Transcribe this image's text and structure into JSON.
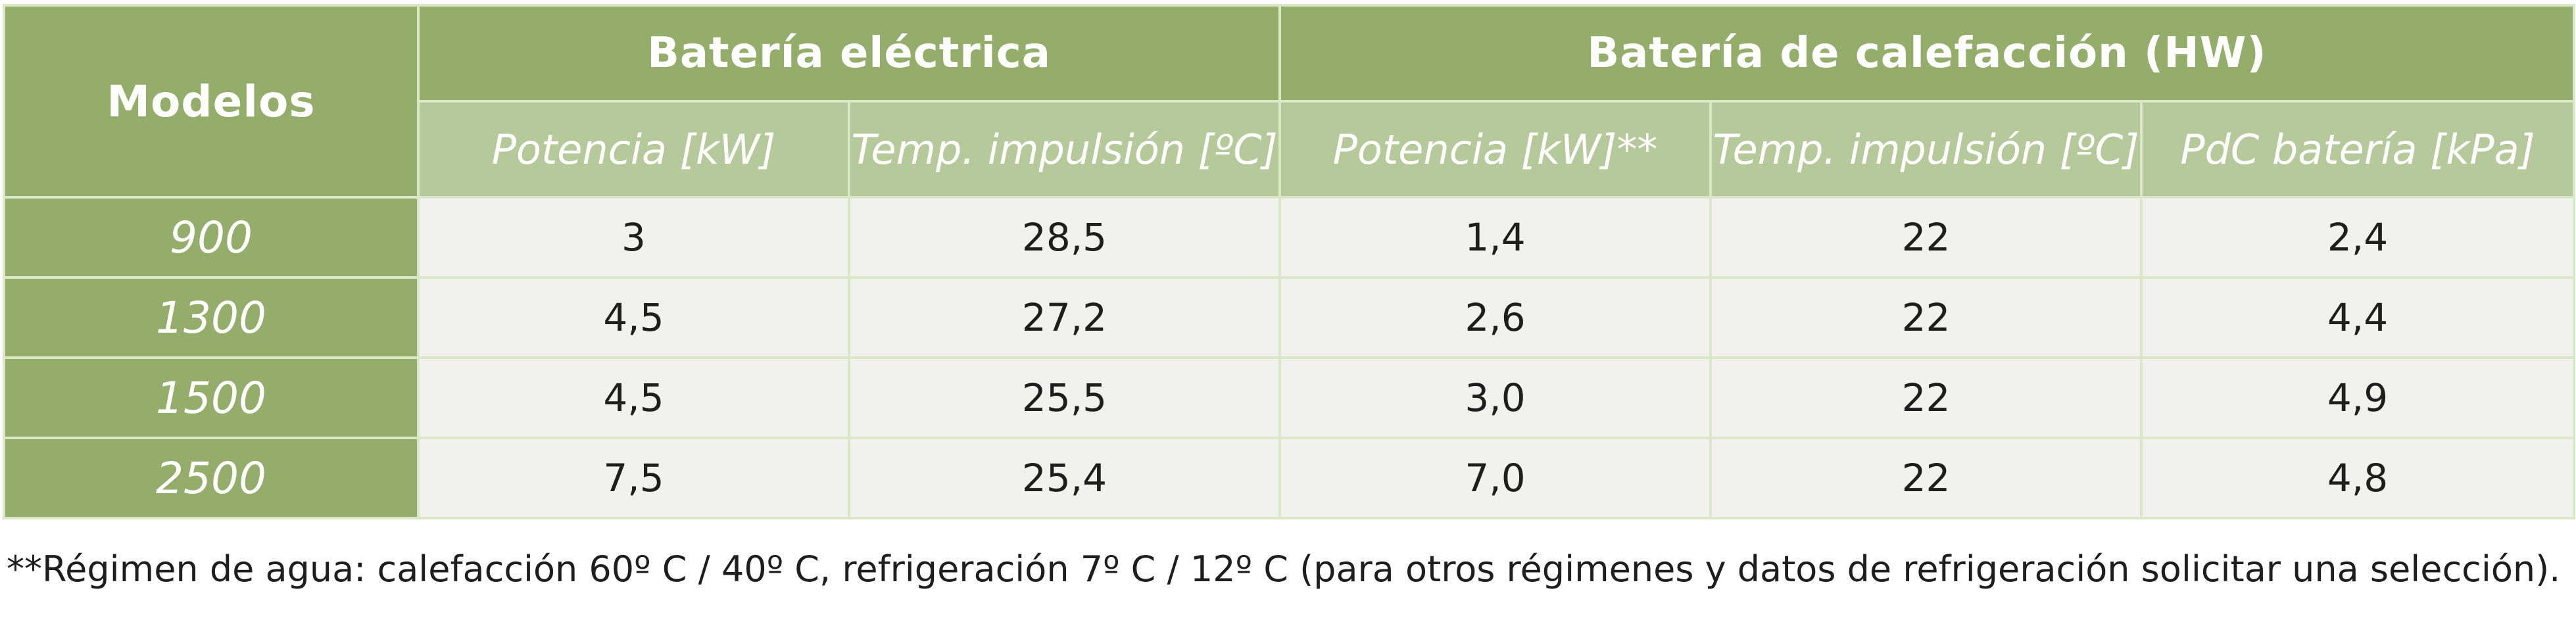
{
  "table": {
    "corner_header": "Modelos",
    "group_headers": [
      "Batería eléctrica",
      "Batería de calefacción (HW)"
    ],
    "sub_headers": [
      "Potencia [kW]",
      "Temp. impulsión [ºC]",
      "Potencia [kW]**",
      "Temp. impulsión [ºC]",
      "PdC batería [kPa]"
    ],
    "rows": [
      {
        "model": "900",
        "values": [
          "3",
          "28,5",
          "1,4",
          "22",
          "2,4"
        ]
      },
      {
        "model": "1300",
        "values": [
          "4,5",
          "27,2",
          "2,6",
          "22",
          "4,4"
        ]
      },
      {
        "model": "1500",
        "values": [
          "4,5",
          "25,5",
          "3,0",
          "22",
          "4,9"
        ]
      },
      {
        "model": "2500",
        "values": [
          "7,5",
          "25,4",
          "7,0",
          "22",
          "4,8"
        ]
      }
    ]
  },
  "footnote": "**Régimen de agua: calefacción 60º C / 40º C, refrigeración 7º C / 12º C (para otros régimenes y datos de refrigeración solicitar una selección).",
  "colors": {
    "header_dark": "#94ad6b",
    "header_light": "#b6c99a",
    "cell_bg": "#f1f1ef",
    "border": "#dbe8c8"
  }
}
